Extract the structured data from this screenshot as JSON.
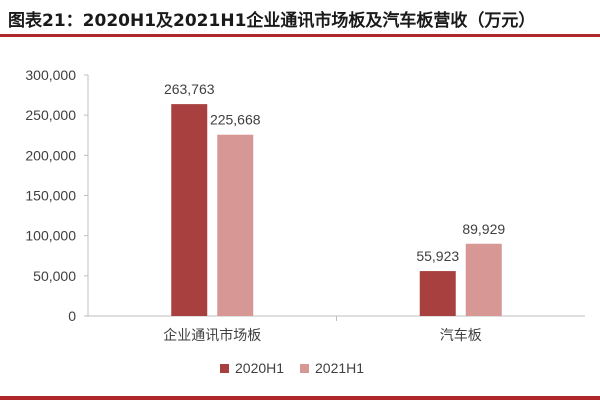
{
  "title": "图表21：2020H1及2021H1企业通讯市场板及汽车板营收（万元）",
  "colors": {
    "accent_rule": "#b0272b",
    "series_2020": "#a8403f",
    "series_2021": "#d69795",
    "axis": "#bfbfbf",
    "text": "#404040"
  },
  "chart_data": {
    "type": "bar",
    "title": "图表21：2020H1及2021H1企业通讯市场板及汽车板营收（万元）",
    "categories": [
      "企业通讯市场板",
      "汽车板"
    ],
    "series": [
      {
        "name": "2020H1",
        "values": [
          263763,
          55923
        ],
        "labels": [
          "263,763",
          "55,923"
        ]
      },
      {
        "name": "2021H1",
        "values": [
          225668,
          89929
        ],
        "labels": [
          "225,668",
          "89,929"
        ]
      }
    ],
    "ylim": [
      0,
      300000
    ],
    "yticks": [
      0,
      50000,
      100000,
      150000,
      200000,
      250000,
      300000
    ],
    "ytick_labels": [
      "0",
      "50,000",
      "100,000",
      "150,000",
      "200,000",
      "250,000",
      "300,000"
    ],
    "xlabel": "",
    "ylabel": "",
    "grid": false,
    "legend": "bottom"
  }
}
